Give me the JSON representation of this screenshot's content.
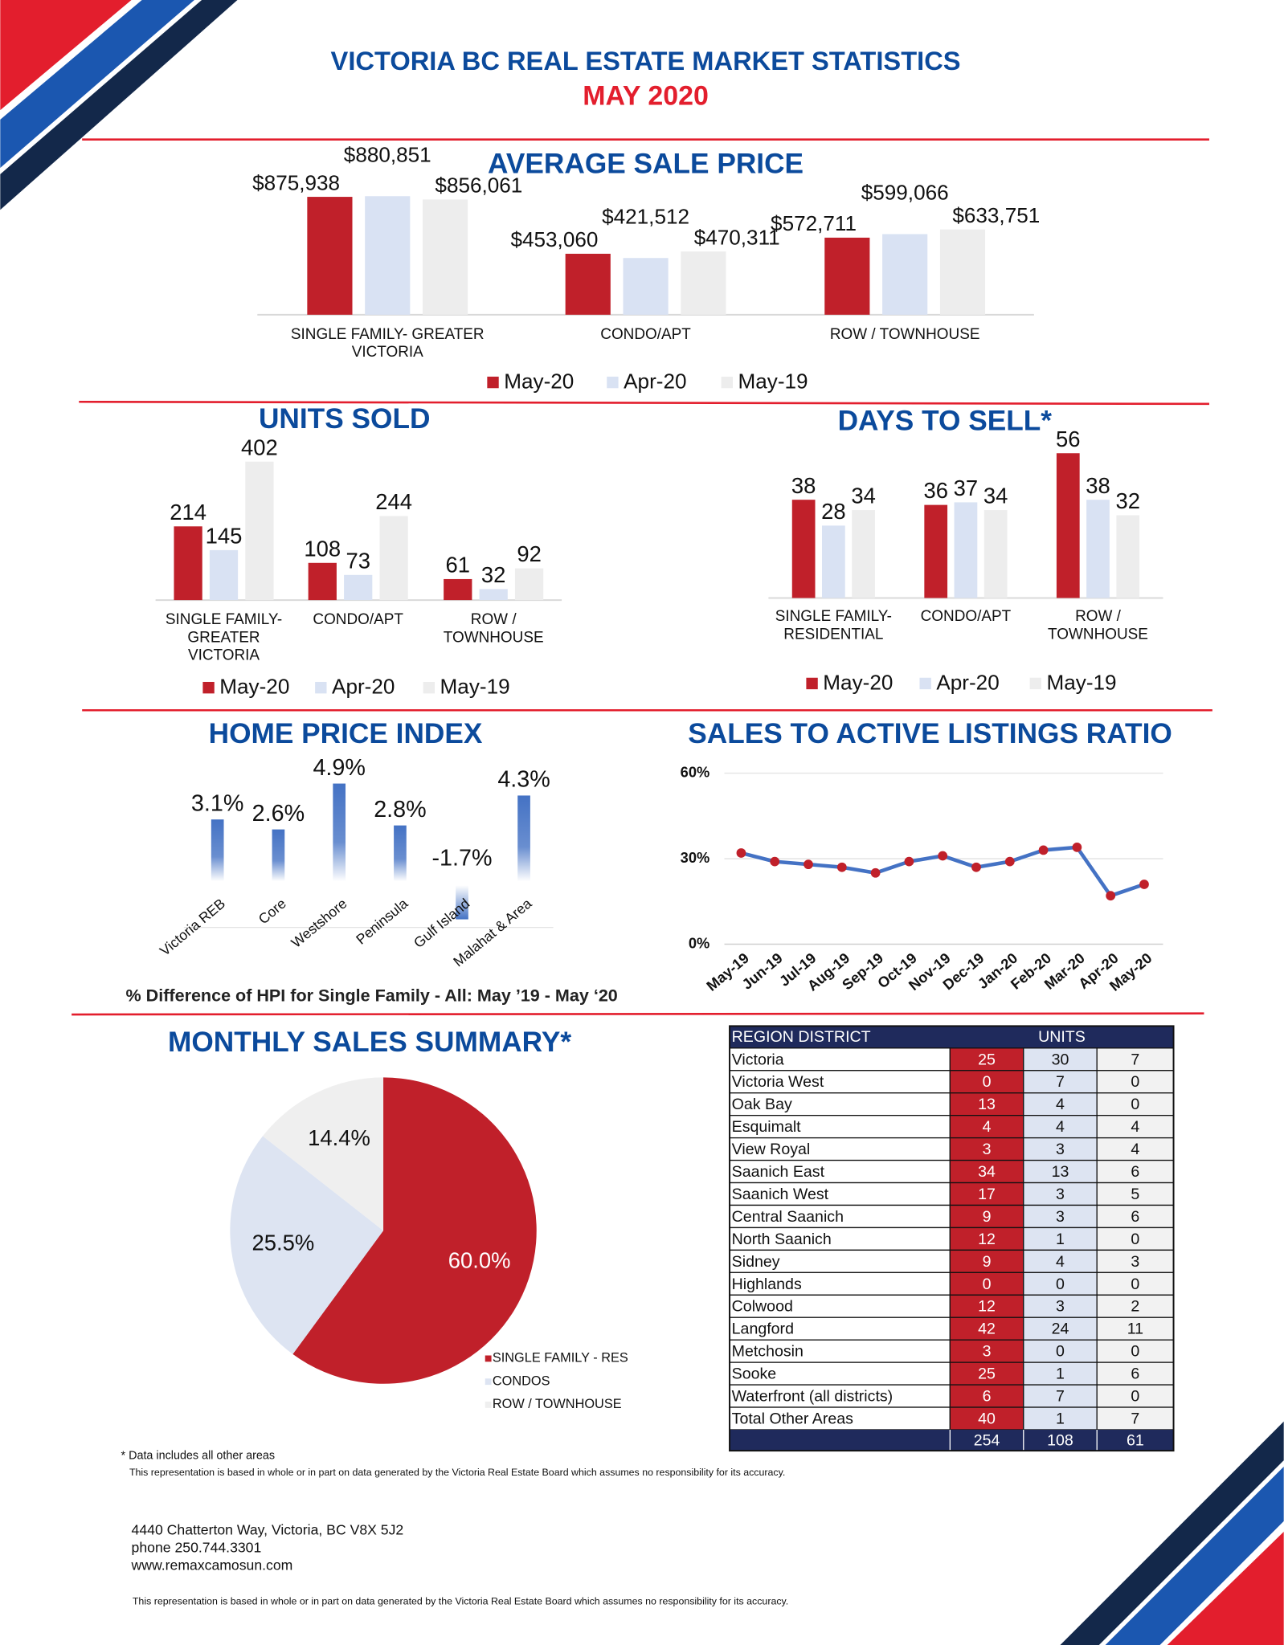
{
  "header": {
    "title": "VICTORIA BC REAL ESTATE MARKET STATISTICS",
    "subtitle": "MAY 2020"
  },
  "chart_data": [
    {
      "type": "bar",
      "title": "AVERAGE SALE PRICE",
      "categories": [
        "SINGLE FAMILY- GREATER VICTORIA",
        "CONDO/APT",
        "ROW  / TOWNHOUSE"
      ],
      "series": [
        {
          "name": "May-20",
          "color": "#c0202a",
          "values": [
            875938,
            453060,
            572711
          ],
          "value_labels": [
            "$875,938",
            "$453,060",
            "$572,711"
          ]
        },
        {
          "name": "Apr-20",
          "color": "#d9e2f3",
          "values": [
            880851,
            421512,
            599066
          ],
          "value_labels": [
            "$880,851",
            "$421,512",
            "$599,066"
          ]
        },
        {
          "name": "May-19",
          "color": "#ededed",
          "values": [
            856061,
            470311,
            633751
          ],
          "value_labels": [
            "$856,061",
            "$470,311",
            "$633,751"
          ]
        }
      ]
    },
    {
      "type": "bar",
      "title": "UNITS SOLD",
      "categories": [
        "SINGLE FAMILY- GREATER VICTORIA",
        "CONDO/APT",
        "ROW / TOWNHOUSE"
      ],
      "series": [
        {
          "name": "May-20",
          "color": "#c0202a",
          "values": [
            214,
            108,
            61
          ]
        },
        {
          "name": "Apr-20",
          "color": "#d9e2f3",
          "values": [
            145,
            73,
            32
          ]
        },
        {
          "name": "May-19",
          "color": "#ededed",
          "values": [
            402,
            244,
            92
          ]
        }
      ]
    },
    {
      "type": "bar",
      "title": "DAYS TO SELL*",
      "categories": [
        "SINGLE FAMILY- RESIDENTIAL",
        "CONDO/APT",
        "ROW / TOWNHOUSE"
      ],
      "series": [
        {
          "name": "May-20",
          "color": "#c0202a",
          "values": [
            38,
            36,
            56
          ]
        },
        {
          "name": "Apr-20",
          "color": "#d9e2f3",
          "values": [
            28,
            37,
            38
          ]
        },
        {
          "name": "May-19",
          "color": "#ededed",
          "values": [
            34,
            34,
            32
          ]
        }
      ]
    },
    {
      "type": "column",
      "title": "HOME PRICE INDEX",
      "subtitle": "% Difference of HPI for Single Family - All: May ’19 - May ‘20",
      "categories": [
        "Victoria REB",
        "Core",
        "Westshore",
        "Peninsula",
        "Gulf Island",
        "Malahat & Area"
      ],
      "values": [
        3.1,
        2.6,
        4.9,
        2.8,
        -1.7,
        4.3
      ],
      "value_labels": [
        "3.1%",
        "2.6%",
        "4.9%",
        "2.8%",
        "-1.7%",
        "4.3%"
      ],
      "color": "#4472c4"
    },
    {
      "type": "line",
      "title": "SALES TO ACTIVE LISTINGS RATIO",
      "categories": [
        "May-19",
        "Jun-19",
        "Jul-19",
        "Aug-19",
        "Sep-19",
        "Oct-19",
        "Nov-19",
        "Dec-19",
        "Jan-20",
        "Feb-20",
        "Mar-20",
        "Apr-20",
        "May-20"
      ],
      "values": [
        32,
        29,
        28,
        27,
        25,
        29,
        31,
        27,
        29,
        33,
        34,
        17,
        21
      ],
      "color": "#4472c4",
      "marker_color": "#c0202a",
      "ylim": [
        0,
        60
      ],
      "yticks": [
        {
          "value": 0,
          "label": "0%"
        },
        {
          "value": 30,
          "label": "30%"
        },
        {
          "value": 60,
          "label": "60%"
        }
      ],
      "grid": true
    },
    {
      "type": "pie",
      "title": "MONTHLY SALES SUMMARY*",
      "categories": [
        "SINGLE FAMILY - RES",
        "CONDOS",
        "ROW / TOWNHOUSE"
      ],
      "values": [
        60,
        25.5,
        14.4
      ],
      "value_labels": [
        "60.0%",
        "25.5%",
        "14.4%"
      ],
      "colors": [
        "#c0202a",
        "#dde4f2",
        "#efefef"
      ]
    }
  ],
  "table": {
    "header": [
      "REGION DISTRICT",
      "UNITS"
    ],
    "rows": [
      [
        "Victoria",
        25,
        30,
        7
      ],
      [
        "Victoria West",
        0,
        7,
        0
      ],
      [
        "Oak Bay",
        13,
        4,
        0
      ],
      [
        "Esquimalt",
        4,
        4,
        4
      ],
      [
        "View Royal",
        3,
        3,
        4
      ],
      [
        "Saanich East",
        34,
        13,
        6
      ],
      [
        "Saanich West",
        17,
        3,
        5
      ],
      [
        "Central Saanich",
        9,
        3,
        6
      ],
      [
        "North Saanich",
        12,
        1,
        0
      ],
      [
        "Sidney",
        9,
        4,
        3
      ],
      [
        "Highlands",
        0,
        0,
        0
      ],
      [
        "Colwood",
        12,
        3,
        2
      ],
      [
        "Langford",
        42,
        24,
        11
      ],
      [
        "Metchosin",
        3,
        0,
        0
      ],
      [
        "Sooke",
        25,
        1,
        6
      ],
      [
        "Waterfront (all districts)",
        6,
        7,
        0
      ],
      [
        "Total Other Areas",
        40,
        1,
        7
      ]
    ],
    "total": [
      254,
      108,
      61
    ]
  },
  "footer": {
    "note": "* Data includes all other areas",
    "disclaimer": "This representation is based in whole or in part on data generated by the Victoria Real Estate Board which assumes no responsibility for its accuracy.",
    "address": [
      "4440 Chatterton Way, Victoria, BC V8X 5J2",
      "phone 250.744.3301",
      "www.remaxcamosun.com"
    ]
  }
}
